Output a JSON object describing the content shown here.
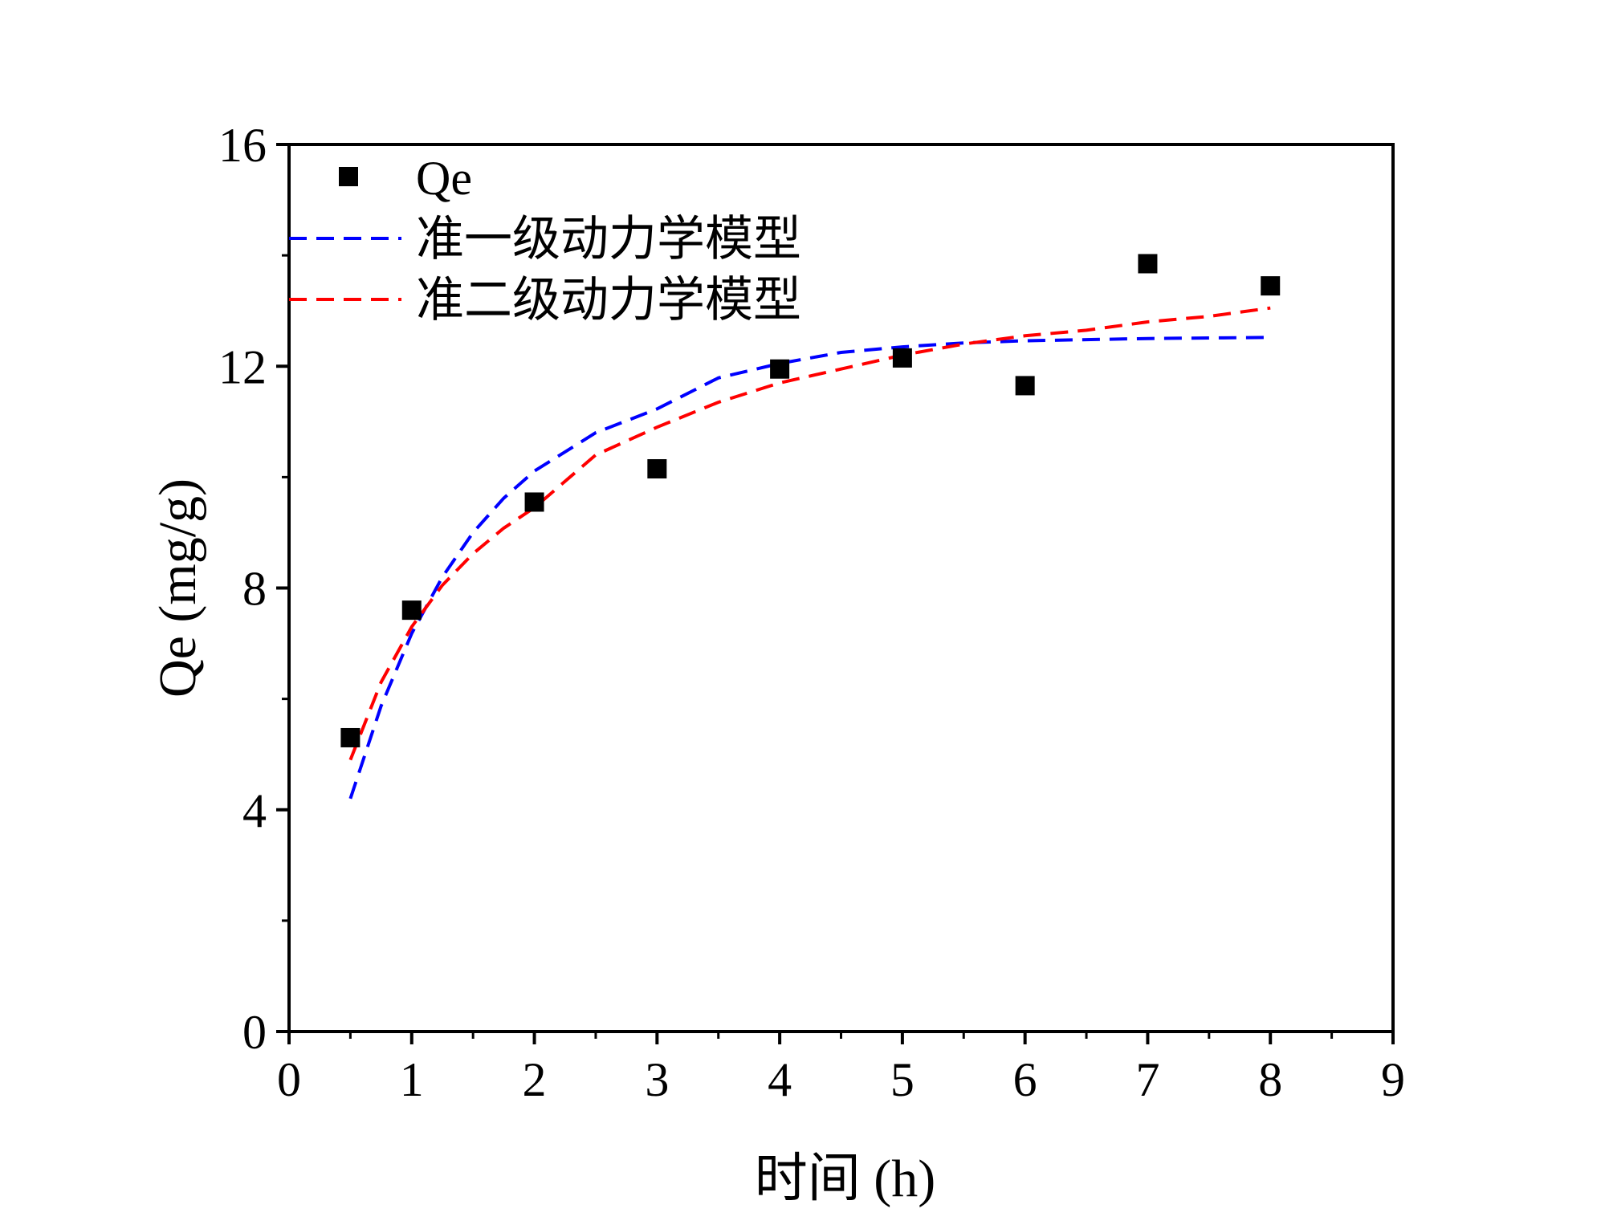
{
  "chart_data": {
    "type": "scatter",
    "title": "",
    "xlabel": "时间 (h)",
    "ylabel": "Qe (mg/g)",
    "xlim": [
      0,
      9
    ],
    "ylim": [
      0,
      16
    ],
    "xticks": [
      0,
      1,
      2,
      3,
      4,
      5,
      6,
      7,
      8,
      9
    ],
    "yticks": [
      0,
      4,
      8,
      12,
      16
    ],
    "xtick_labels": [
      "0",
      "1",
      "2",
      "3",
      "4",
      "5",
      "6",
      "7",
      "8",
      "9"
    ],
    "ytick_labels": [
      "0",
      "4",
      "8",
      "12",
      "16"
    ],
    "legend_position": "top-left",
    "series": [
      {
        "name": "Qe",
        "kind": "scatter",
        "marker": "square",
        "color": "#000000",
        "x": [
          0.5,
          1,
          2,
          3,
          4,
          5,
          6,
          7,
          8
        ],
        "y": [
          5.3,
          7.6,
          9.55,
          10.15,
          11.95,
          12.15,
          11.65,
          13.85,
          13.45
        ]
      },
      {
        "name": "准一级动力学模型",
        "kind": "line",
        "dash": "dashed",
        "color": "#0000ff",
        "x": [
          0.5,
          0.75,
          1,
          1.25,
          1.5,
          1.75,
          2,
          2.5,
          3,
          3.5,
          4,
          4.5,
          5,
          5.5,
          6,
          6.5,
          7,
          7.5,
          8
        ],
        "y": [
          4.2,
          5.87,
          7.18,
          8.2,
          9.0,
          9.62,
          10.11,
          10.8,
          11.23,
          11.79,
          12.05,
          12.25,
          12.35,
          12.42,
          12.46,
          12.48,
          12.5,
          12.51,
          12.52
        ]
      },
      {
        "name": "准二级动力学模型",
        "kind": "line",
        "dash": "dashed",
        "color": "#ff0000",
        "x": [
          0.5,
          0.75,
          1,
          1.25,
          1.5,
          1.75,
          2,
          2.5,
          3,
          3.5,
          4,
          4.5,
          5,
          5.5,
          6,
          6.5,
          7,
          7.5,
          8
        ],
        "y": [
          4.9,
          6.3,
          7.3,
          8.05,
          8.62,
          9.08,
          9.45,
          10.4,
          10.9,
          11.35,
          11.7,
          11.95,
          12.2,
          12.4,
          12.55,
          12.65,
          12.8,
          12.9,
          13.05
        ]
      }
    ]
  }
}
